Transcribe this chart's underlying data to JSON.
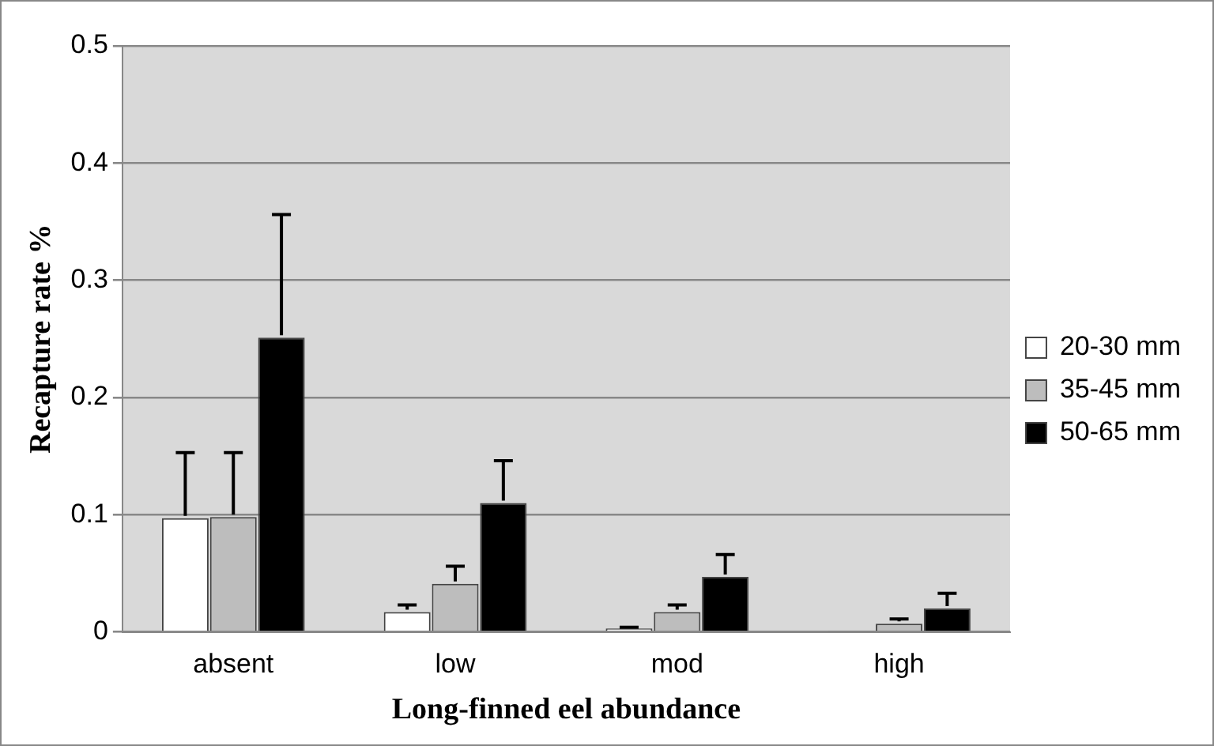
{
  "chart_data": {
    "type": "bar",
    "xlabel": "Long-finned eel abundance",
    "ylabel": "Recapture rate %",
    "categories": [
      "absent",
      "low",
      "mod",
      "high"
    ],
    "series": [
      {
        "name": "20-30 mm",
        "color": "#ffffff",
        "values": [
          0.097,
          0.017,
          0.003,
          0.001
        ],
        "errors": [
          [
            0.097,
            0.153
          ],
          [
            0.017,
            0.023
          ],
          [
            0.003,
            0.004
          ],
          null
        ]
      },
      {
        "name": "35-45 mm",
        "color": "#bdbdbd",
        "values": [
          0.098,
          0.041,
          0.017,
          0.007
        ],
        "errors": [
          [
            0.098,
            0.153
          ],
          [
            0.041,
            0.056
          ],
          [
            0.017,
            0.023
          ],
          [
            0.007,
            0.011
          ]
        ]
      },
      {
        "name": "50-65 mm",
        "color": "#000000",
        "values": [
          0.251,
          0.11,
          0.047,
          0.02
        ],
        "errors": [
          [
            0.251,
            0.356
          ],
          [
            0.11,
            0.146
          ],
          [
            0.047,
            0.066
          ],
          [
            0.02,
            0.033
          ]
        ]
      }
    ],
    "ylim": [
      0,
      0.5
    ],
    "yticks": [
      0,
      0.1,
      0.2,
      0.3,
      0.4,
      0.5
    ],
    "grid": "y",
    "legend": "right"
  }
}
